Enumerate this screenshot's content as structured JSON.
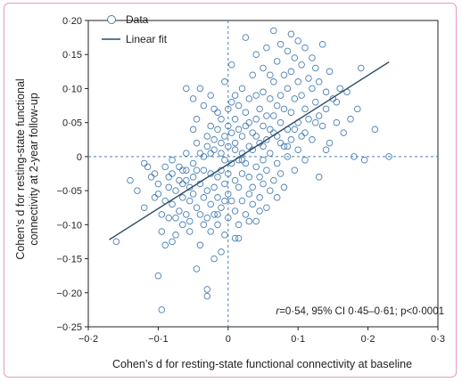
{
  "chart_data": {
    "type": "scatter",
    "xlabel": "Cohen’s d for resting-state functional connectivity at baseline",
    "ylabel_lines": [
      "Cohen’s d for resting-state functional",
      "connectivity at 2-year follow-up"
    ],
    "xlim": [
      -0.2,
      0.3
    ],
    "ylim": [
      -0.25,
      0.2
    ],
    "x_ticks": [
      {
        "value": -0.2,
        "label": "−0·2"
      },
      {
        "value": -0.1,
        "label": "−0·1"
      },
      {
        "value": 0,
        "label": "0"
      },
      {
        "value": 0.1,
        "label": "0·1"
      },
      {
        "value": 0.2,
        "label": "0·2"
      },
      {
        "value": 0.3,
        "label": "0·3"
      }
    ],
    "y_ticks": [
      {
        "value": 0.2,
        "label": "0·20"
      },
      {
        "value": 0.15,
        "label": "0·15"
      },
      {
        "value": 0.1,
        "label": "0·10"
      },
      {
        "value": 0.05,
        "label": "0·05"
      },
      {
        "value": 0,
        "label": "0"
      },
      {
        "value": -0.05,
        "label": "−0·05"
      },
      {
        "value": -0.1,
        "label": "−0·10"
      },
      {
        "value": -0.15,
        "label": "−0·15"
      },
      {
        "value": -0.2,
        "label": "−0·20"
      },
      {
        "value": -0.25,
        "label": "−0·25"
      }
    ],
    "legend": {
      "position": "top-left",
      "data_label": "Data",
      "fit_label": "Linear fit"
    },
    "fit_line": {
      "x": [
        -0.17,
        0.23
      ],
      "y": [
        -0.122,
        0.139
      ]
    },
    "reference_lines": {
      "x": 0,
      "y": 0
    },
    "annotation": {
      "r_symbol": "r",
      "text": "=0·54, 95% CI 0·45–0·61; p<0·0001"
    },
    "colors": {
      "marker": "#4a7fb5",
      "fit_line": "#2e4d63",
      "reference": "#4a7fb5",
      "frame": "#e39bc2"
    },
    "series": [
      {
        "points": [
          [
            -0.16,
            -0.125
          ],
          [
            -0.13,
            -0.05
          ],
          [
            -0.12,
            -0.01
          ],
          [
            -0.115,
            -0.015
          ],
          [
            -0.11,
            -0.03
          ],
          [
            -0.105,
            -0.025
          ],
          [
            -0.1,
            -0.175
          ],
          [
            -0.1,
            -0.055
          ],
          [
            -0.1,
            -0.04
          ],
          [
            -0.095,
            -0.225
          ],
          [
            -0.095,
            -0.085
          ],
          [
            -0.09,
            -0.065
          ],
          [
            -0.09,
            -0.015
          ],
          [
            -0.09,
            -0.13
          ],
          [
            -0.085,
            -0.09
          ],
          [
            -0.085,
            -0.045
          ],
          [
            -0.085,
            -0.03
          ],
          [
            -0.08,
            -0.125
          ],
          [
            -0.08,
            -0.07
          ],
          [
            -0.08,
            -0.025
          ],
          [
            -0.08,
            -0.005
          ],
          [
            -0.075,
            -0.09
          ],
          [
            -0.075,
            -0.05
          ],
          [
            -0.07,
            -0.08
          ],
          [
            -0.07,
            -0.035
          ],
          [
            -0.07,
            -0.015
          ],
          [
            -0.065,
            -0.1
          ],
          [
            -0.065,
            -0.06
          ],
          [
            -0.065,
            -0.04
          ],
          [
            -0.06,
            -0.085
          ],
          [
            -0.06,
            0.1
          ],
          [
            -0.06,
            -0.02
          ],
          [
            -0.06,
            0.005
          ],
          [
            -0.055,
            -0.11
          ],
          [
            -0.055,
            -0.065
          ],
          [
            -0.055,
            -0.045
          ],
          [
            -0.055,
            -0.095
          ],
          [
            -0.05,
            0.085
          ],
          [
            -0.05,
            0.04
          ],
          [
            -0.05,
            -0.03
          ],
          [
            -0.05,
            -0.01
          ],
          [
            -0.05,
            -0.055
          ],
          [
            -0.045,
            -0.165
          ],
          [
            -0.045,
            -0.075
          ],
          [
            -0.045,
            0.02
          ],
          [
            -0.045,
            0.055
          ],
          [
            -0.04,
            -0.04
          ],
          [
            -0.04,
            0.1
          ],
          [
            -0.04,
            -0.085
          ],
          [
            -0.04,
            0.005
          ],
          [
            -0.035,
            -0.06
          ],
          [
            -0.035,
            -0.1
          ],
          [
            -0.035,
            0.075
          ],
          [
            -0.035,
            -0.02
          ],
          [
            -0.03,
            -0.195
          ],
          [
            -0.03,
            -0.205
          ],
          [
            -0.03,
            0.03
          ],
          [
            -0.03,
            -0.05
          ],
          [
            -0.03,
            0.015
          ],
          [
            -0.025,
            -0.11
          ],
          [
            -0.025,
            0.045
          ],
          [
            -0.025,
            -0.025
          ],
          [
            -0.025,
            -0.07
          ],
          [
            -0.025,
            0.09
          ],
          [
            -0.02,
            -0.085
          ],
          [
            -0.02,
            0.025
          ],
          [
            -0.02,
            -0.045
          ],
          [
            -0.02,
            0.01
          ],
          [
            -0.02,
            -0.15
          ],
          [
            -0.02,
            0.07
          ],
          [
            -0.015,
            -0.06
          ],
          [
            -0.015,
            -0.03
          ],
          [
            -0.015,
            0.04
          ],
          [
            -0.015,
            -0.1
          ],
          [
            -0.015,
            0.065
          ],
          [
            -0.01,
            -0.14
          ],
          [
            -0.01,
            -0.02
          ],
          [
            -0.01,
            0.02
          ],
          [
            -0.01,
            -0.075
          ],
          [
            -0.01,
            0.005
          ],
          [
            -0.01,
            0.055
          ],
          [
            -0.005,
            -0.04
          ],
          [
            -0.005,
            -0.115
          ],
          [
            -0.005,
            0.03
          ],
          [
            -0.005,
            -0.005
          ],
          [
            -0.005,
            0.11
          ],
          [
            0,
            -0.09
          ],
          [
            0,
            -0.055
          ],
          [
            0,
            0.015
          ],
          [
            0,
            0.045
          ],
          [
            0,
            -0.025
          ],
          [
            0.005,
            -0.065
          ],
          [
            0.005,
            0.035
          ],
          [
            0.005,
            0.08
          ],
          [
            0.005,
            -0.01
          ],
          [
            0.005,
            0.135
          ],
          [
            0.01,
            -0.035
          ],
          [
            0.01,
            -0.08
          ],
          [
            0.01,
            0.01
          ],
          [
            0.01,
            0.055
          ],
          [
            0.01,
            -0.12
          ],
          [
            0.01,
            0.02
          ],
          [
            0.015,
            0.075
          ],
          [
            0.015,
            -0.045
          ],
          [
            0.015,
            -0.005
          ],
          [
            0.015,
            0.04
          ],
          [
            0.015,
            -0.1
          ],
          [
            0.02,
            -0.065
          ],
          [
            0.02,
            0.03
          ],
          [
            0.02,
            0.005
          ],
          [
            0.02,
            -0.025
          ],
          [
            0.02,
            0.1
          ],
          [
            0.025,
            -0.085
          ],
          [
            0.025,
            0.045
          ],
          [
            0.025,
            -0.01
          ],
          [
            0.025,
            0.065
          ],
          [
            0.025,
            0.175
          ],
          [
            0.03,
            -0.055
          ],
          [
            0.03,
            0.015
          ],
          [
            0.03,
            -0.03
          ],
          [
            0.03,
            0.085
          ],
          [
            0.035,
            -0.07
          ],
          [
            0.035,
            0.035
          ],
          [
            0.035,
            0.01
          ],
          [
            0.035,
            -0.045
          ],
          [
            0.035,
            0.12
          ],
          [
            0.04,
            -0.015
          ],
          [
            0.04,
            0.055
          ],
          [
            0.04,
            -0.095
          ],
          [
            0.04,
            0.03
          ],
          [
            0.04,
            0.15
          ],
          [
            0.045,
            -0.06
          ],
          [
            0.045,
            0.07
          ],
          [
            0.045,
            -0.03
          ],
          [
            0.045,
            0.02
          ],
          [
            0.05,
            0.095
          ],
          [
            0.05,
            -0.04
          ],
          [
            0.05,
            0.045
          ],
          [
            0.05,
            -0.005
          ],
          [
            0.05,
            0.13
          ],
          [
            0.055,
            -0.075
          ],
          [
            0.055,
            0.06
          ],
          [
            0.055,
            0.025
          ],
          [
            0.055,
            -0.02
          ],
          [
            0.055,
            0.16
          ],
          [
            0.06,
            0.085
          ],
          [
            0.06,
            -0.05
          ],
          [
            0.06,
            0.04
          ],
          [
            0.06,
            0.005
          ],
          [
            0.065,
            0.11
          ],
          [
            0.065,
            -0.035
          ],
          [
            0.065,
            0.06
          ],
          [
            0.065,
            0.185
          ],
          [
            0.07,
            0.075
          ],
          [
            0.07,
            -0.01
          ],
          [
            0.07,
            0.03
          ],
          [
            0.07,
            0.14
          ],
          [
            0.075,
            0.09
          ],
          [
            0.075,
            -0.025
          ],
          [
            0.075,
            0.05
          ],
          [
            0.075,
            0.165
          ],
          [
            0.08,
            0.12
          ],
          [
            0.08,
            0.015
          ],
          [
            0.08,
            0.07
          ],
          [
            0.08,
            -0.045
          ],
          [
            0.085,
            0.1
          ],
          [
            0.085,
            0.04
          ],
          [
            0.085,
            0.155
          ],
          [
            0.085,
            0.0
          ],
          [
            0.09,
            0.18
          ],
          [
            0.09,
            0.065
          ],
          [
            0.09,
            0.125
          ],
          [
            0.09,
            0.025
          ],
          [
            0.095,
            0.085
          ],
          [
            0.095,
            0.145
          ],
          [
            0.095,
            -0.02
          ],
          [
            0.1,
            0.11
          ],
          [
            0.1,
            0.05
          ],
          [
            0.1,
            0.17
          ],
          [
            0.1,
            0.01
          ],
          [
            0.105,
            0.09
          ],
          [
            0.105,
            0.135
          ],
          [
            0.105,
            0.03
          ],
          [
            0.11,
            0.07
          ],
          [
            0.11,
            0.16
          ],
          [
            0.11,
            -0.005
          ],
          [
            0.115,
            0.115
          ],
          [
            0.115,
            0.055
          ],
          [
            0.12,
            0.1
          ],
          [
            0.12,
            0.145
          ],
          [
            0.12,
            0.025
          ],
          [
            0.125,
            0.08
          ],
          [
            0.125,
            0.13
          ],
          [
            0.13,
            0.06
          ],
          [
            0.13,
            0.11
          ],
          [
            0.13,
            -0.03
          ],
          [
            0.135,
            0.165
          ],
          [
            0.135,
            0.045
          ],
          [
            0.14,
            0.095
          ],
          [
            0.14,
            0.07
          ],
          [
            0.145,
            0.125
          ],
          [
            0.145,
            0.02
          ],
          [
            0.15,
            0.085
          ],
          [
            0.155,
            0.05
          ],
          [
            0.16,
            0.1
          ],
          [
            0.165,
            0.035
          ],
          [
            0.175,
            0.055
          ],
          [
            0.18,
            0.0
          ],
          [
            0.185,
            0.07
          ],
          [
            0.19,
            0.13
          ],
          [
            0.195,
            -0.005
          ],
          [
            0.21,
            0.04
          ],
          [
            0.23,
            0.0
          ],
          [
            -0.14,
            -0.035
          ],
          [
            -0.12,
            -0.075
          ],
          [
            -0.105,
            -0.06
          ],
          [
            -0.095,
            -0.11
          ],
          [
            -0.075,
            -0.115
          ],
          [
            -0.065,
            -0.02
          ],
          [
            -0.045,
            -0.02
          ],
          [
            -0.04,
            -0.13
          ],
          [
            -0.03,
            -0.09
          ],
          [
            -0.015,
            -0.085
          ],
          [
            -0.005,
            -0.065
          ],
          [
            0.01,
            0.09
          ],
          [
            0.03,
            0.05
          ],
          [
            0.045,
            -0.08
          ],
          [
            0.06,
            0.12
          ],
          [
            0.07,
            -0.06
          ],
          [
            0.085,
            0.015
          ],
          [
            0.095,
            0.04
          ],
          [
            0.11,
            0.035
          ],
          [
            0.125,
            0.05
          ],
          [
            0.14,
            0.01
          ],
          [
            0.155,
            0.08
          ],
          [
            0.17,
            0.095
          ],
          [
            -0.025,
            0.005
          ],
          [
            0.0,
            0.07
          ],
          [
            0.02,
            -0.005
          ],
          [
            0.04,
            0.09
          ],
          [
            0.05,
            0.015
          ],
          [
            -0.06,
            -0.035
          ],
          [
            -0.035,
            0.0
          ],
          [
            0.015,
            -0.12
          ],
          [
            0.03,
            -0.095
          ],
          [
            0.065,
            0.035
          ],
          [
            0.075,
            0.02
          ]
        ]
      }
    ]
  }
}
